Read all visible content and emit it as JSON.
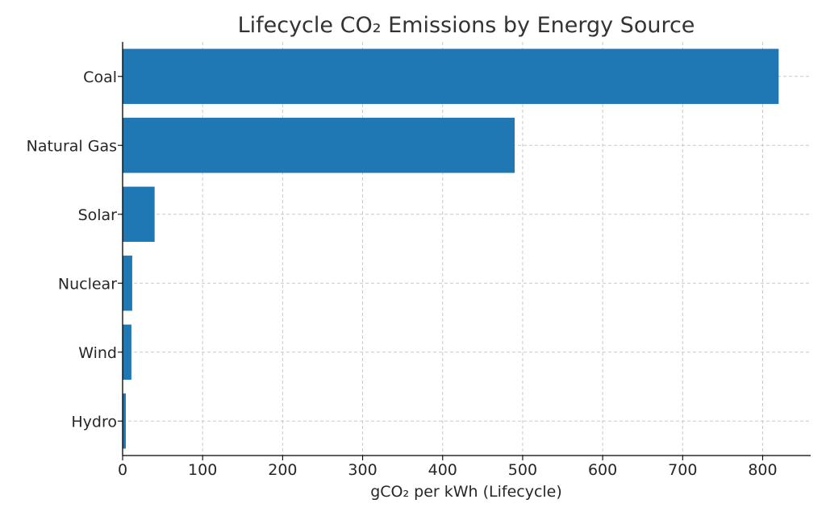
{
  "chart_data": {
    "type": "bar",
    "orientation": "horizontal",
    "title": "Lifecycle CO₂ Emissions by Energy Source",
    "xlabel": "gCO₂ per kWh (Lifecycle)",
    "ylabel": "",
    "categories": [
      "Coal",
      "Natural Gas",
      "Solar",
      "Nuclear",
      "Wind",
      "Hydro"
    ],
    "values": [
      820,
      490,
      40,
      12,
      11,
      4
    ],
    "xlim": [
      0,
      860
    ],
    "xticks": [
      0,
      100,
      200,
      300,
      400,
      500,
      600,
      700,
      800
    ],
    "grid": true,
    "bar_color": "#1f77b4"
  }
}
